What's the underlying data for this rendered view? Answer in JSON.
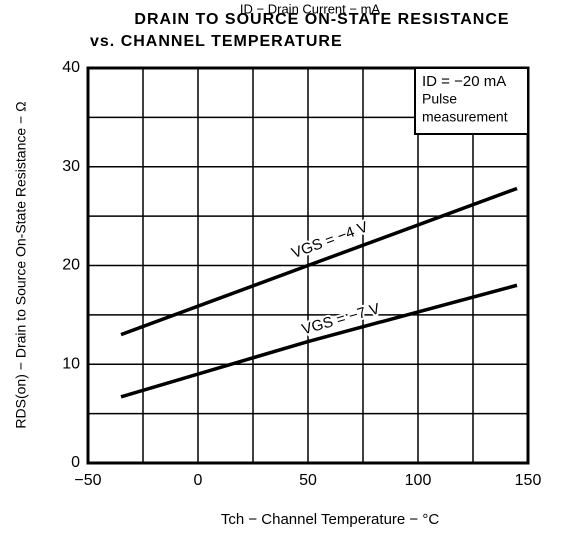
{
  "chart_data": {
    "type": "line",
    "title": [
      "DRAIN TO SOURCE ON-STATE RESISTANCE",
      "vs. CHANNEL TEMPERATURE"
    ],
    "header_note": "ID − Drain Current − mA",
    "annotations": [
      "ID = −20 mA",
      "Pulse",
      "measurement"
    ],
    "x_label": "Tch − Channel Temperature − °C",
    "y_label": "RDS(on) − Drain to Source On-State Resistance − Ω",
    "x": [
      -35,
      50,
      145
    ],
    "series": [
      {
        "name": "VGS = −4 V",
        "color": "#000000",
        "values": [
          13,
          20,
          27.8
        ]
      },
      {
        "name": "VGS = −7 V",
        "color": "#000000",
        "values": [
          6.7,
          12.3,
          18
        ]
      }
    ],
    "xlim": [
      -50,
      150
    ],
    "xticks": [
      {
        "value": -50,
        "label": "−50"
      },
      0,
      50,
      100,
      150
    ],
    "xminor": [
      -25,
      25,
      75,
      125
    ],
    "ylim": [
      0,
      40
    ],
    "yticks": [
      0,
      10,
      20,
      30,
      40
    ],
    "yminor": [
      5,
      15,
      25,
      35
    ],
    "grid": true
  }
}
